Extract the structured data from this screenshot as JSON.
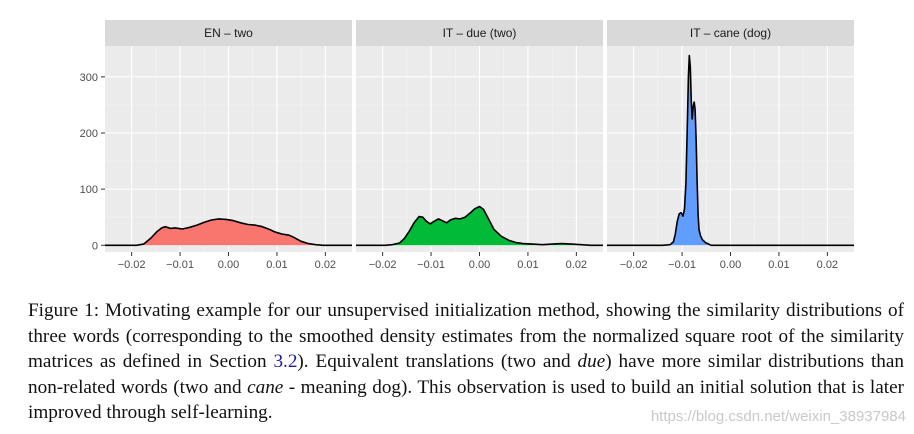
{
  "chart_data": {
    "type": "area",
    "title": "",
    "xlabel": "",
    "ylabel": "",
    "xlim": [
      -0.0255,
      0.0255
    ],
    "ylim": [
      -12,
      355
    ],
    "x_ticks": [
      -0.02,
      -0.01,
      0.0,
      0.01,
      0.02
    ],
    "x_tick_labels": [
      "−0.02",
      "−0.01",
      "0.00",
      "0.01",
      "0.02"
    ],
    "y_ticks": [
      0,
      100,
      200,
      300
    ],
    "y_tick_labels": [
      "0",
      "100",
      "200",
      "300"
    ],
    "grid": true,
    "panels": [
      {
        "name": "en-two",
        "strip_label": "EN – two",
        "fill_color": "#F8766D",
        "points": [
          [
            -0.0255,
            0
          ],
          [
            -0.019,
            0
          ],
          [
            -0.0175,
            2
          ],
          [
            -0.016,
            13
          ],
          [
            -0.0148,
            24
          ],
          [
            -0.0138,
            31
          ],
          [
            -0.013,
            33
          ],
          [
            -0.012,
            30
          ],
          [
            -0.011,
            31
          ],
          [
            -0.0095,
            29
          ],
          [
            -0.008,
            32
          ],
          [
            -0.0065,
            36
          ],
          [
            -0.005,
            41
          ],
          [
            -0.0035,
            45
          ],
          [
            -0.002,
            47
          ],
          [
            -0.0005,
            46
          ],
          [
            0.001,
            44
          ],
          [
            0.0025,
            40
          ],
          [
            0.004,
            37
          ],
          [
            0.0055,
            36
          ],
          [
            0.007,
            33
          ],
          [
            0.0085,
            28
          ],
          [
            0.0095,
            24
          ],
          [
            0.011,
            20
          ],
          [
            0.0125,
            18
          ],
          [
            0.0135,
            14
          ],
          [
            0.015,
            7
          ],
          [
            0.0165,
            3
          ],
          [
            0.018,
            1
          ],
          [
            0.0195,
            0
          ],
          [
            0.0255,
            0
          ]
        ]
      },
      {
        "name": "it-due",
        "strip_label": "IT – due (two)",
        "fill_color": "#00BA38",
        "points": [
          [
            -0.0255,
            0
          ],
          [
            -0.0195,
            0
          ],
          [
            -0.018,
            1
          ],
          [
            -0.0165,
            4
          ],
          [
            -0.0155,
            12
          ],
          [
            -0.0145,
            25
          ],
          [
            -0.0135,
            40
          ],
          [
            -0.0125,
            51
          ],
          [
            -0.0117,
            50
          ],
          [
            -0.011,
            43
          ],
          [
            -0.0102,
            38
          ],
          [
            -0.0095,
            42
          ],
          [
            -0.0085,
            47
          ],
          [
            -0.0075,
            43
          ],
          [
            -0.0068,
            40
          ],
          [
            -0.006,
            45
          ],
          [
            -0.005,
            48
          ],
          [
            -0.004,
            47
          ],
          [
            -0.003,
            50
          ],
          [
            -0.002,
            57
          ],
          [
            -0.001,
            65
          ],
          [
            0.0,
            69
          ],
          [
            0.0008,
            64
          ],
          [
            0.0018,
            48
          ],
          [
            0.003,
            28
          ],
          [
            0.0045,
            16
          ],
          [
            0.006,
            9
          ],
          [
            0.0075,
            5
          ],
          [
            0.009,
            3
          ],
          [
            0.011,
            2
          ],
          [
            0.013,
            1
          ],
          [
            0.015,
            2
          ],
          [
            0.017,
            3
          ],
          [
            0.019,
            2
          ],
          [
            0.021,
            1
          ],
          [
            0.023,
            0
          ],
          [
            0.0255,
            0
          ]
        ]
      },
      {
        "name": "it-cane",
        "strip_label": "IT – cane (dog)",
        "fill_color": "#619CFF",
        "points": [
          [
            -0.0255,
            0
          ],
          [
            -0.014,
            0
          ],
          [
            -0.0125,
            1
          ],
          [
            -0.0118,
            6
          ],
          [
            -0.0114,
            20
          ],
          [
            -0.011,
            42
          ],
          [
            -0.0106,
            56
          ],
          [
            -0.0102,
            58
          ],
          [
            -0.0098,
            52
          ],
          [
            -0.0095,
            65
          ],
          [
            -0.0092,
            110
          ],
          [
            -0.0089,
            220
          ],
          [
            -0.0087,
            300
          ],
          [
            -0.0085,
            338
          ],
          [
            -0.0083,
            318
          ],
          [
            -0.0081,
            255
          ],
          [
            -0.0079,
            225
          ],
          [
            -0.0077,
            248
          ],
          [
            -0.0075,
            255
          ],
          [
            -0.0073,
            242
          ],
          [
            -0.0071,
            190
          ],
          [
            -0.0069,
            115
          ],
          [
            -0.0067,
            55
          ],
          [
            -0.0065,
            28
          ],
          [
            -0.0062,
            17
          ],
          [
            -0.0058,
            10
          ],
          [
            -0.0052,
            5
          ],
          [
            -0.0045,
            2
          ],
          [
            -0.004,
            0
          ],
          [
            0.0255,
            0
          ]
        ]
      }
    ]
  },
  "caption": {
    "text_before_ref": "Figure 1: Motivating example for our unsupervised initialization method, showing the similarity distributions of three words (corresponding to the smoothed density estimates from the normalized square root of the similarity matrices as defined in Section ",
    "ref": "3.2",
    "text_after_ref": "). Equivalent translations (two and ",
    "italic_word_1": "due",
    "text_middle": ") have more similar distributions than non-related words (two and ",
    "italic_word_2": "cane",
    "text_end": " - meaning dog). This observation is used to build an initial solution that is later improved through self-learning."
  },
  "watermark": "https://blog.csdn.net/weixin_38937984"
}
